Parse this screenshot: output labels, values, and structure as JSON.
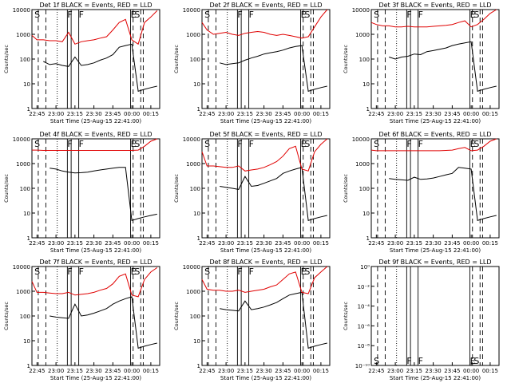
{
  "figure": {
    "xlabel": "Start Time (25-Aug-15 22:41:00)",
    "ylabel": "Counts/sec",
    "x_ticks": [
      "22:45",
      "23:00",
      "23:15",
      "23:30",
      "23:45",
      "00:00",
      "00:15"
    ],
    "y_ticks": [
      "1",
      "10",
      "100",
      "1000",
      "10000"
    ],
    "empty_y_ticks": [
      "10⁰",
      "10⁻²",
      "10⁻⁴",
      "10⁻⁶",
      "10⁻⁸",
      "10⁻¹⁰"
    ]
  },
  "colors": {
    "events": "#000000",
    "lld": "#e00000",
    "axis": "#000000"
  },
  "chart_data": [
    {
      "type": "line",
      "title": "Det 1f BLACK = Events, RED = LLD",
      "x": [
        "22:41",
        "22:45",
        "22:50",
        "22:55",
        "23:00",
        "23:05",
        "23:10",
        "23:15",
        "23:20",
        "23:25",
        "23:30",
        "23:35",
        "23:40",
        "23:45",
        "23:50",
        "23:55",
        "00:00",
        "00:05",
        "00:10",
        "00:15",
        "00:20"
      ],
      "series": [
        {
          "name": "Events",
          "values": [
            null,
            null,
            80,
            60,
            65,
            55,
            50,
            120,
            55,
            60,
            70,
            90,
            110,
            150,
            300,
            350,
            400,
            5,
            6,
            7,
            8
          ]
        },
        {
          "name": "LLD",
          "values": [
            900,
            600,
            600,
            550,
            550,
            500,
            1200,
            400,
            500,
            550,
            600,
            700,
            800,
            1500,
            3000,
            4000,
            600,
            400,
            3000,
            5000,
            9000
          ]
        }
      ],
      "ylim": [
        1,
        10000
      ],
      "yscale": "log",
      "flags": [
        "S",
        "F",
        "F",
        "E",
        "S"
      ]
    },
    {
      "type": "line",
      "title": "Det 2f BLACK = Events, RED = LLD",
      "x": [
        "22:41",
        "22:45",
        "22:50",
        "22:55",
        "23:00",
        "23:05",
        "23:10",
        "23:15",
        "23:20",
        "23:25",
        "23:30",
        "23:35",
        "23:40",
        "23:45",
        "23:50",
        "23:55",
        "00:00",
        "00:05",
        "00:10",
        "00:15",
        "00:20"
      ],
      "series": [
        {
          "name": "Events",
          "values": [
            null,
            null,
            null,
            70,
            60,
            65,
            70,
            90,
            110,
            130,
            160,
            180,
            200,
            230,
            280,
            320,
            350,
            5,
            6,
            7,
            8
          ]
        },
        {
          "name": "LLD",
          "values": [
            3000,
            1500,
            1000,
            1100,
            1200,
            1000,
            900,
            1100,
            1200,
            1300,
            1200,
            1000,
            900,
            1000,
            900,
            800,
            700,
            800,
            2000,
            5000,
            10000
          ]
        }
      ],
      "ylim": [
        1,
        10000
      ],
      "yscale": "log",
      "flags": [
        "S",
        "F",
        "F",
        "E",
        "S"
      ]
    },
    {
      "type": "line",
      "title": "Det 3f BLACK = Events, RED = LLD",
      "x": [
        "22:41",
        "22:45",
        "22:50",
        "22:55",
        "23:00",
        "23:05",
        "23:10",
        "23:15",
        "23:20",
        "23:25",
        "23:30",
        "23:35",
        "23:40",
        "23:45",
        "23:50",
        "23:55",
        "00:00",
        "00:05",
        "00:10",
        "00:15",
        "00:20"
      ],
      "series": [
        {
          "name": "Events",
          "values": [
            null,
            null,
            null,
            120,
            100,
            120,
            130,
            160,
            150,
            200,
            220,
            250,
            280,
            350,
            400,
            450,
            500,
            5,
            6,
            7,
            8
          ]
        },
        {
          "name": "LLD",
          "values": [
            3000,
            2500,
            2200,
            2200,
            2000,
            2000,
            2100,
            2000,
            2000,
            2000,
            2100,
            2200,
            2300,
            2500,
            3000,
            3500,
            2000,
            2500,
            4000,
            7000,
            10000
          ]
        }
      ],
      "ylim": [
        1,
        10000
      ],
      "yscale": "log",
      "flags": [
        "S",
        "F",
        "F",
        "E",
        "S"
      ]
    },
    {
      "type": "line",
      "title": "Det 4f BLACK = Events, RED = LLD",
      "x": [
        "22:41",
        "22:45",
        "22:50",
        "22:55",
        "23:00",
        "23:05",
        "23:10",
        "23:15",
        "23:20",
        "23:25",
        "23:30",
        "23:35",
        "23:40",
        "23:45",
        "23:50",
        "23:55",
        "00:00",
        "00:05",
        "00:10",
        "00:15",
        "00:20"
      ],
      "series": [
        {
          "name": "Events",
          "values": [
            null,
            null,
            null,
            650,
            600,
            500,
            450,
            420,
            430,
            450,
            500,
            550,
            600,
            650,
            700,
            700,
            5,
            6,
            7,
            8,
            9
          ]
        },
        {
          "name": "LLD",
          "values": [
            3500,
            3500,
            3400,
            3400,
            3400,
            3400,
            3400,
            3400,
            3400,
            3400,
            3400,
            3400,
            3400,
            3400,
            3400,
            3400,
            3400,
            3500,
            5000,
            8000,
            10000
          ]
        }
      ],
      "ylim": [
        1,
        10000
      ],
      "yscale": "log",
      "flags": [
        "S",
        "F",
        "F",
        "E",
        "S"
      ]
    },
    {
      "type": "line",
      "title": "Det 5f BLACK = Events, RED = LLD",
      "x": [
        "22:41",
        "22:45",
        "22:50",
        "22:55",
        "23:00",
        "23:05",
        "23:10",
        "23:15",
        "23:20",
        "23:25",
        "23:30",
        "23:35",
        "23:40",
        "23:45",
        "23:50",
        "23:55",
        "00:00",
        "00:05",
        "00:10",
        "00:15",
        "00:20"
      ],
      "series": [
        {
          "name": "Events",
          "values": [
            null,
            null,
            null,
            120,
            110,
            100,
            90,
            300,
            120,
            130,
            160,
            200,
            250,
            400,
            500,
            600,
            700,
            5,
            6,
            7,
            8
          ]
        },
        {
          "name": "LLD",
          "values": [
            3000,
            800,
            800,
            750,
            700,
            700,
            800,
            500,
            550,
            600,
            700,
            900,
            1200,
            2000,
            4000,
            5000,
            600,
            500,
            3000,
            6000,
            10000
          ]
        }
      ],
      "ylim": [
        1,
        10000
      ],
      "yscale": "log",
      "flags": [
        "S",
        "F",
        "F",
        "E",
        "S"
      ]
    },
    {
      "type": "line",
      "title": "Det 6f BLACK = Events, RED = LLD",
      "x": [
        "22:41",
        "22:45",
        "22:50",
        "22:55",
        "23:00",
        "23:05",
        "23:10",
        "23:15",
        "23:20",
        "23:25",
        "23:30",
        "23:35",
        "23:40",
        "23:45",
        "23:50",
        "23:55",
        "00:00",
        "00:05",
        "00:10",
        "00:15",
        "00:20"
      ],
      "series": [
        {
          "name": "Events",
          "values": [
            null,
            null,
            null,
            250,
            230,
            220,
            210,
            280,
            230,
            240,
            260,
            300,
            350,
            400,
            700,
            650,
            600,
            5,
            6,
            7,
            8
          ]
        },
        {
          "name": "LLD",
          "values": [
            3500,
            3300,
            3300,
            3300,
            3300,
            3300,
            3300,
            3300,
            3300,
            3300,
            3300,
            3300,
            3400,
            3500,
            4000,
            4500,
            3300,
            3500,
            5000,
            8000,
            10000
          ]
        }
      ],
      "ylim": [
        1,
        10000
      ],
      "yscale": "log",
      "flags": [
        "S",
        "F",
        "F",
        "E",
        "S"
      ]
    },
    {
      "type": "line",
      "title": "Det 7f BLACK = Events, RED = LLD",
      "x": [
        "22:41",
        "22:45",
        "22:50",
        "22:55",
        "23:00",
        "23:05",
        "23:10",
        "23:15",
        "23:20",
        "23:25",
        "23:30",
        "23:35",
        "23:40",
        "23:45",
        "23:50",
        "23:55",
        "00:00",
        "00:05",
        "00:10",
        "00:15",
        "00:20"
      ],
      "series": [
        {
          "name": "Events",
          "values": [
            null,
            null,
            null,
            100,
            90,
            85,
            80,
            300,
            100,
            110,
            130,
            160,
            200,
            300,
            400,
            500,
            600,
            5,
            6,
            7,
            8
          ]
        },
        {
          "name": "LLD",
          "values": [
            2500,
            900,
            900,
            850,
            800,
            800,
            900,
            700,
            750,
            800,
            900,
            1100,
            1300,
            2000,
            4000,
            5000,
            700,
            600,
            3000,
            6000,
            9000
          ]
        }
      ],
      "ylim": [
        1,
        10000
      ],
      "yscale": "log",
      "flags": [
        "S",
        "F",
        "F",
        "E",
        "S"
      ]
    },
    {
      "type": "line",
      "title": "Det 8f BLACK = Events, RED = LLD",
      "x": [
        "22:41",
        "22:45",
        "22:50",
        "22:55",
        "23:00",
        "23:05",
        "23:10",
        "23:15",
        "23:20",
        "23:25",
        "23:30",
        "23:35",
        "23:40",
        "23:45",
        "23:50",
        "23:55",
        "00:00",
        "00:05",
        "00:10",
        "00:15",
        "00:20"
      ],
      "series": [
        {
          "name": "Events",
          "values": [
            null,
            null,
            null,
            200,
            180,
            170,
            160,
            400,
            180,
            200,
            230,
            280,
            350,
            500,
            700,
            800,
            900,
            5,
            6,
            7,
            8
          ]
        },
        {
          "name": "LLD",
          "values": [
            3000,
            1200,
            1100,
            1100,
            1000,
            1000,
            1100,
            900,
            1000,
            1100,
            1200,
            1500,
            1800,
            3000,
            5000,
            6000,
            900,
            800,
            3500,
            6000,
            10000
          ]
        }
      ],
      "ylim": [
        1,
        10000
      ],
      "yscale": "log",
      "flags": [
        "S",
        "F",
        "F",
        "E",
        "S"
      ]
    },
    {
      "type": "line",
      "title": "Det 9f BLACK = Events, RED = LLD",
      "x": [],
      "series": [],
      "yscale": "log",
      "empty": true,
      "flags": [
        "S",
        "F",
        "F",
        "E",
        "S"
      ]
    }
  ]
}
